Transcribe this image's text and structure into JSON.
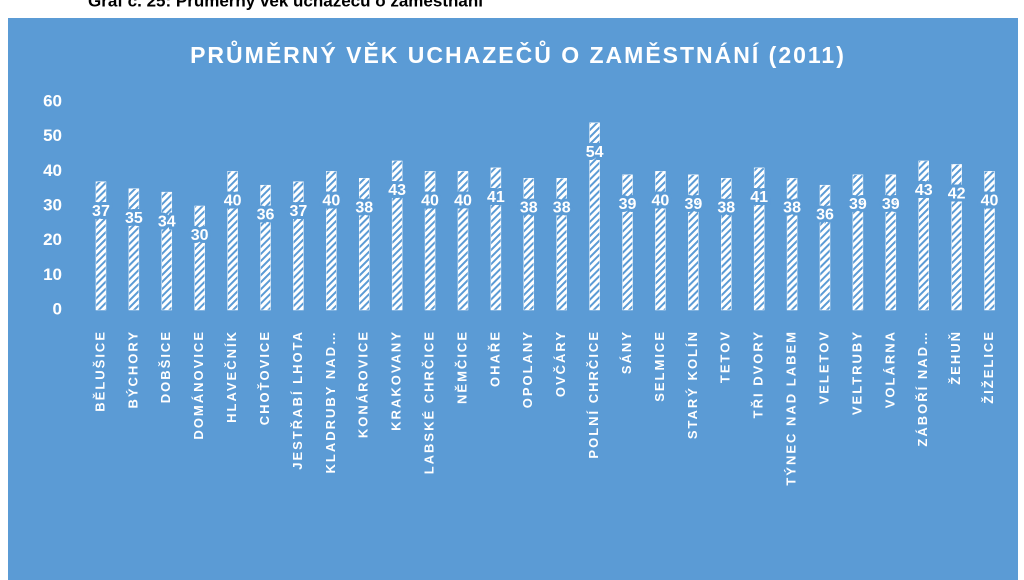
{
  "caption": "Graf č. 25: Průměrný věk uchazečů o zaměstnání",
  "chart_data": {
    "type": "bar",
    "title": "PRŮMĚRNÝ VĚK UCHAZEČŮ O ZAMĚSTNÁNÍ (2011)",
    "categories": [
      "BĚLUŠICE",
      "BÝCHORY",
      "DOBŠICE",
      "DOMÁNOVICE",
      "HLAVEČNÍK",
      "CHOŤOVICE",
      "JESTŘABÍ LHOTA",
      "KLADRUBY NAD…",
      "KONÁROVICE",
      "KRAKOVANY",
      "LABSKÉ CHRČICE",
      "NĚMČICE",
      "OHAŘE",
      "OPOLANY",
      "OVČÁRY",
      "POLNÍ CHRČICE",
      "SÁNY",
      "SELMICE",
      "STARÝ KOLÍN",
      "TETOV",
      "TŘI DVORY",
      "TÝNEC NAD LABEM",
      "VELETOV",
      "VELTRUBY",
      "VOLÁRNA",
      "ZÁBOŘÍ NAD…",
      "ŽEHUŇ",
      "ŽIŽELICE"
    ],
    "values": [
      37,
      35,
      34,
      30,
      40,
      36,
      37,
      40,
      38,
      43,
      40,
      40,
      41,
      38,
      38,
      54,
      39,
      40,
      39,
      38,
      41,
      38,
      36,
      39,
      39,
      43,
      42,
      40
    ],
    "color": "#ffffff",
    "ylim": [
      0,
      60
    ],
    "yticks": [
      0,
      10,
      20,
      30,
      40,
      50,
      60
    ],
    "grid": false
  }
}
